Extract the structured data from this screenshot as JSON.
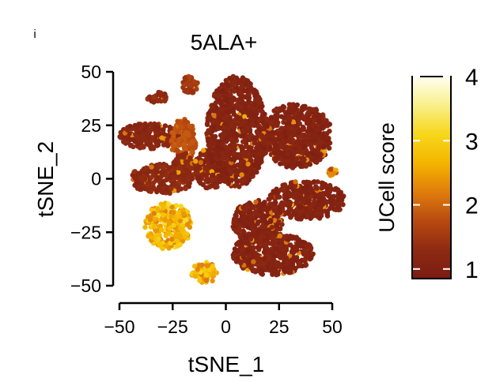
{
  "chart_data": {
    "type": "scatter",
    "title": "5ALA+",
    "xlabel": "tSNE_1",
    "ylabel": "tSNE_2",
    "xlim": [
      -53,
      57
    ],
    "ylim": [
      -55,
      52
    ],
    "xticks": [
      -50,
      -25,
      0,
      25,
      50
    ],
    "yticks": [
      -50,
      -25,
      0,
      25,
      50
    ],
    "x_tick_labels": [
      "−50",
      "−25",
      "0",
      "25",
      "50"
    ],
    "y_tick_labels": [
      "−50",
      "−25",
      "0",
      "25",
      "50"
    ],
    "grid": false,
    "legend": "right",
    "colorbar": {
      "label": "UCell score",
      "min": 0.85,
      "max": 4.0,
      "ticks": [
        1,
        2,
        3,
        4
      ],
      "tick_labels": [
        "1",
        "2",
        "3",
        "4"
      ],
      "colors": [
        "#7a1c12",
        "#8e2a12",
        "#b84a10",
        "#e07d0c",
        "#f4b400",
        "#f7d71a",
        "#f9ef8a",
        "#fffff2"
      ]
    },
    "clusters": [
      {
        "cx": -32,
        "cy": 38,
        "rx": 5,
        "ry": 2.5,
        "score": 1.3
      },
      {
        "cx": -17,
        "cy": 44,
        "rx": 4,
        "ry": 4,
        "score": 1.5
      },
      {
        "cx": -36,
        "cy": 20,
        "rx": 14,
        "ry": 6,
        "score": 1.2
      },
      {
        "cx": -20,
        "cy": 18,
        "rx": 6,
        "ry": 10,
        "score": 1.8
      },
      {
        "cx": -30,
        "cy": 0,
        "rx": 15,
        "ry": 7,
        "score": 1.25
      },
      {
        "cx": -20,
        "cy": 5,
        "rx": 6,
        "ry": 7,
        "score": 1.3
      },
      {
        "cx": -6,
        "cy": 5,
        "rx": 9,
        "ry": 10,
        "score": 1.15
      },
      {
        "cx": 5,
        "cy": 22,
        "rx": 14,
        "ry": 26,
        "score": 1.1
      },
      {
        "cx": 33,
        "cy": 20,
        "rx": 17,
        "ry": 15,
        "score": 1.1
      },
      {
        "cx": 38,
        "cy": -10,
        "rx": 18,
        "ry": 9,
        "score": 1.1
      },
      {
        "cx": 15,
        "cy": -20,
        "rx": 12,
        "ry": 10,
        "score": 1.1
      },
      {
        "cx": 22,
        "cy": -35,
        "rx": 19,
        "ry": 10,
        "score": 1.1
      },
      {
        "cx": -27,
        "cy": -22,
        "rx": 11,
        "ry": 11,
        "score": 2.7
      },
      {
        "cx": -10,
        "cy": -44,
        "rx": 6,
        "ry": 5,
        "score": 2.6
      },
      {
        "cx": 50,
        "cy": 3,
        "rx": 2,
        "ry": 2,
        "score": 2.2
      }
    ]
  },
  "corner_mark": "i"
}
